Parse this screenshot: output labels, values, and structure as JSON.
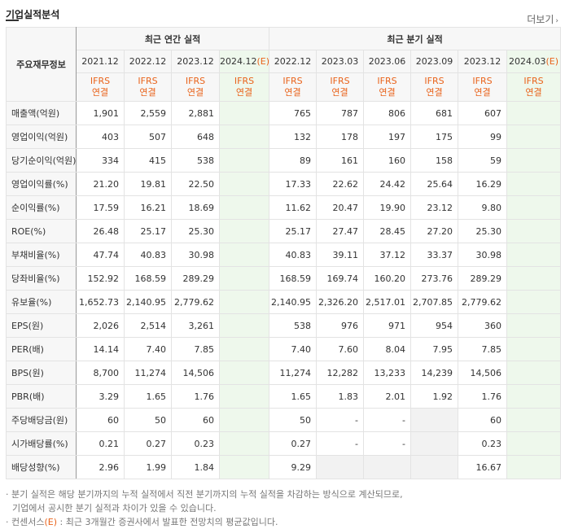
{
  "header": {
    "title": "기업실적분석",
    "more": "더보기"
  },
  "groups": {
    "annual": "최근 연간 실적",
    "quarterly": "최근 분기 실적"
  },
  "row_header": "주요재무정보",
  "periods": [
    "2021.12",
    "2022.12",
    "2023.12",
    "2024.12(E)",
    "2022.12",
    "2023.03",
    "2023.06",
    "2023.09",
    "2023.12",
    "2024.03(E)"
  ],
  "basis": [
    "IFRS\n연결",
    "IFRS\n연결",
    "IFRS\n연결",
    "IFRS\n연결",
    "IFRS\n연결",
    "IFRS\n연결",
    "IFRS\n연결",
    "IFRS\n연결",
    "IFRS\n연결",
    "IFRS\n연결"
  ],
  "rows": [
    {
      "label": "매출액(억원)",
      "values": [
        "1,901",
        "2,559",
        "2,881",
        "",
        "765",
        "787",
        "806",
        "681",
        "607",
        ""
      ]
    },
    {
      "label": "영업이익(억원)",
      "values": [
        "403",
        "507",
        "648",
        "",
        "132",
        "178",
        "197",
        "175",
        "99",
        ""
      ]
    },
    {
      "label": "당기순이익(억원)",
      "values": [
        "334",
        "415",
        "538",
        "",
        "89",
        "161",
        "160",
        "158",
        "59",
        ""
      ]
    },
    {
      "label": "영업이익률(%)",
      "values": [
        "21.20",
        "19.81",
        "22.50",
        "",
        "17.33",
        "22.62",
        "24.42",
        "25.64",
        "16.29",
        ""
      ]
    },
    {
      "label": "순이익률(%)",
      "values": [
        "17.59",
        "16.21",
        "18.69",
        "",
        "11.62",
        "20.47",
        "19.90",
        "23.12",
        "9.80",
        ""
      ]
    },
    {
      "label": "ROE(%)",
      "values": [
        "26.48",
        "25.17",
        "25.30",
        "",
        "25.17",
        "27.47",
        "28.45",
        "27.20",
        "25.30",
        ""
      ]
    },
    {
      "label": "부채비율(%)",
      "values": [
        "47.74",
        "40.83",
        "30.98",
        "",
        "40.83",
        "39.11",
        "37.12",
        "33.37",
        "30.98",
        ""
      ]
    },
    {
      "label": "당좌비율(%)",
      "values": [
        "152.92",
        "168.59",
        "289.29",
        "",
        "168.59",
        "169.74",
        "160.20",
        "273.76",
        "289.29",
        ""
      ]
    },
    {
      "label": "유보율(%)",
      "values": [
        "1,652.73",
        "2,140.95",
        "2,779.62",
        "",
        "2,140.95",
        "2,326.20",
        "2,517.01",
        "2,707.85",
        "2,779.62",
        ""
      ]
    },
    {
      "label": "EPS(원)",
      "values": [
        "2,026",
        "2,514",
        "3,261",
        "",
        "538",
        "976",
        "971",
        "954",
        "360",
        ""
      ]
    },
    {
      "label": "PER(배)",
      "values": [
        "14.14",
        "7.40",
        "7.85",
        "",
        "7.40",
        "7.60",
        "8.04",
        "7.95",
        "7.85",
        ""
      ]
    },
    {
      "label": "BPS(원)",
      "values": [
        "8,700",
        "11,274",
        "14,506",
        "",
        "11,274",
        "12,282",
        "13,233",
        "14,239",
        "14,506",
        ""
      ]
    },
    {
      "label": "PBR(배)",
      "values": [
        "3.29",
        "1.65",
        "1.76",
        "",
        "1.65",
        "1.83",
        "2.01",
        "1.92",
        "1.76",
        ""
      ]
    },
    {
      "label": "주당배당금(원)",
      "values": [
        "60",
        "50",
        "60",
        "",
        "50",
        "-",
        "-",
        "",
        "60",
        ""
      ]
    },
    {
      "label": "시가배당률(%)",
      "values": [
        "0.21",
        "0.27",
        "0.23",
        "",
        "0.27",
        "-",
        "-",
        "",
        "0.23",
        ""
      ]
    },
    {
      "label": "배당성향(%)",
      "values": [
        "2.96",
        "1.99",
        "1.84",
        "",
        "9.29",
        "",
        "",
        "",
        "16.67",
        ""
      ]
    }
  ],
  "notes": {
    "line1": "분기 실적은 해당 분기까지의 누적 실적에서 직전 분기까지의 누적 실적을 차감하는 방식으로 계산되므로,",
    "line2": "기업에서 공시한 분기 실적과 차이가 있을 수 있습니다.",
    "line3_a": "컨센서스",
    "line3_b": "(E)",
    "line3_c": " : 최근 3개월간 증권사에서 발표한 전망치의 평균값입니다."
  }
}
